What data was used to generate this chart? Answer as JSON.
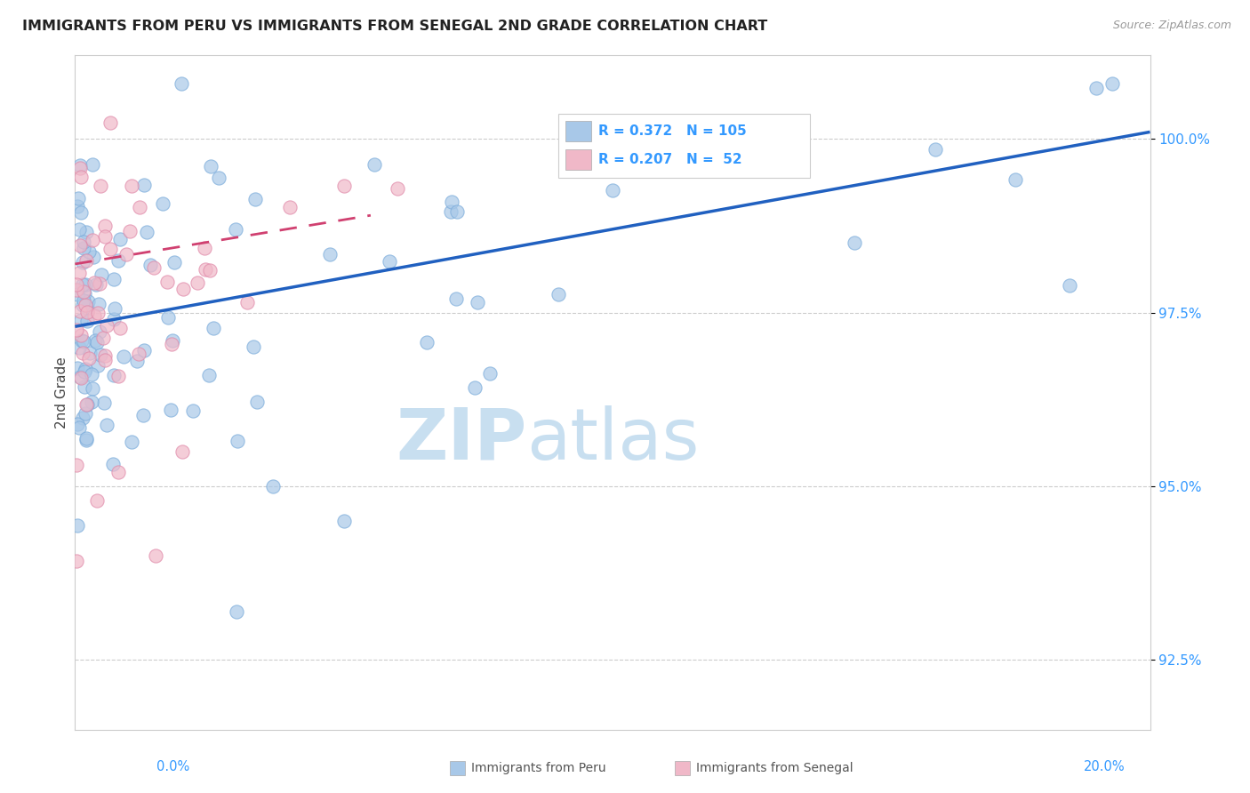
{
  "title": "IMMIGRANTS FROM PERU VS IMMIGRANTS FROM SENEGAL 2ND GRADE CORRELATION CHART",
  "source": "Source: ZipAtlas.com",
  "ylabel": "2nd Grade",
  "xlim": [
    0.0,
    20.0
  ],
  "ylim": [
    91.5,
    101.2
  ],
  "yticks": [
    92.5,
    95.0,
    97.5,
    100.0
  ],
  "ytick_labels": [
    "92.5%",
    "95.0%",
    "97.5%",
    "100.0%"
  ],
  "peru_color": "#a8c8e8",
  "peru_edge_color": "#7aabda",
  "senegal_color": "#f0b8c8",
  "senegal_edge_color": "#e088a8",
  "peru_line_color": "#2060c0",
  "senegal_line_color": "#d04070",
  "peru_R": 0.372,
  "peru_N": 105,
  "senegal_R": 0.207,
  "senegal_N": 52,
  "peru_line_x0": 0.0,
  "peru_line_y0": 97.3,
  "peru_line_x1": 20.0,
  "peru_line_y1": 100.1,
  "senegal_line_x0": 0.0,
  "senegal_line_y0": 98.2,
  "senegal_line_x1": 5.5,
  "senegal_line_y1": 98.9,
  "watermark_zip": "ZIP",
  "watermark_atlas": "atlas",
  "background_color": "#ffffff",
  "legend_box_color": "#ffffff",
  "tick_label_color": "#3399ff",
  "title_color": "#222222",
  "source_color": "#999999"
}
